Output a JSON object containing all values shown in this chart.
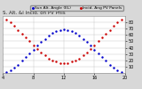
{
  "title": "S. Alt. &I Incid. on PV Pnls",
  "legend_labels": [
    "Sun Alt. Angle (EL)",
    "Incid. Ang PV Panels"
  ],
  "legend_colors": [
    "#0000cc",
    "#cc0000"
  ],
  "bg_color": "#d8d8d8",
  "plot_bg": "#ffffff",
  "grid_color": "#aaaaaa",
  "ylim": [
    0,
    90
  ],
  "xlim": [
    4,
    20
  ],
  "xtick_vals": [
    4,
    8,
    12,
    16,
    20
  ],
  "ytick_vals": [
    10,
    20,
    30,
    40,
    50,
    60,
    70,
    80
  ],
  "sun_altitude_x": [
    4.5,
    5.0,
    5.5,
    6.0,
    6.5,
    7.0,
    7.5,
    8.0,
    8.5,
    9.0,
    9.5,
    10.0,
    10.5,
    11.0,
    11.5,
    12.0,
    12.5,
    13.0,
    13.5,
    14.0,
    14.5,
    15.0,
    15.5,
    16.0,
    16.5,
    17.0,
    17.5,
    18.0,
    18.5,
    19.0,
    19.5
  ],
  "sun_altitude_y": [
    1,
    4,
    8,
    13,
    19,
    25,
    31,
    37,
    43,
    49,
    54,
    59,
    63,
    66,
    68,
    69,
    68,
    66,
    63,
    59,
    54,
    49,
    43,
    37,
    31,
    25,
    19,
    13,
    8,
    4,
    1
  ],
  "incidence_x": [
    4.5,
    5.0,
    5.5,
    6.0,
    6.5,
    7.0,
    7.5,
    8.0,
    8.5,
    9.0,
    9.5,
    10.0,
    10.5,
    11.0,
    11.5,
    12.0,
    12.5,
    13.0,
    13.5,
    14.0,
    14.5,
    15.0,
    15.5,
    16.0,
    16.5,
    17.0,
    17.5,
    18.0,
    18.5,
    19.0,
    19.5
  ],
  "incidence_y": [
    85,
    80,
    74,
    68,
    62,
    56,
    50,
    44,
    38,
    33,
    28,
    23,
    20,
    18,
    16,
    15,
    16,
    18,
    20,
    23,
    28,
    33,
    38,
    44,
    50,
    56,
    62,
    68,
    74,
    80,
    85
  ],
  "marker_size": 1.5,
  "title_fontsize": 4,
  "tick_fontsize": 3.5,
  "legend_fontsize": 3.2
}
